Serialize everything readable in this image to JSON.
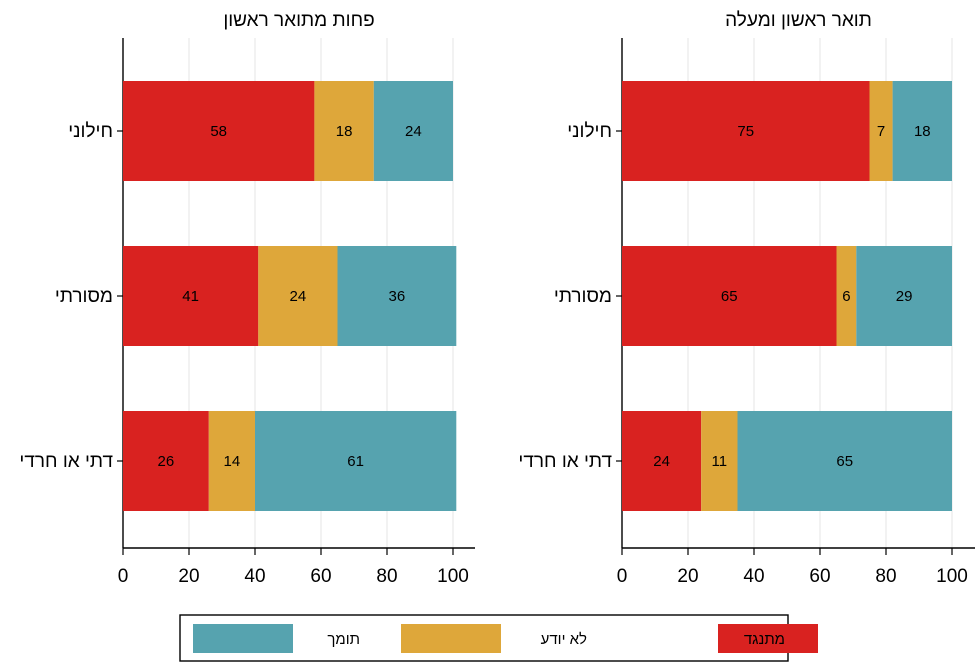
{
  "chart_data": [
    {
      "type": "bar",
      "orientation": "horizontal",
      "stacked": true,
      "title": "פחות מתואר ראשון",
      "categories": [
        "חילוני",
        "מסורתי",
        "דתי או חרדי"
      ],
      "series": [
        {
          "name": "מתנגד",
          "values": [
            58,
            41,
            26
          ]
        },
        {
          "name": "לא יודע",
          "values": [
            18,
            24,
            14
          ]
        },
        {
          "name": "תומך",
          "values": [
            24,
            36,
            61
          ]
        }
      ],
      "xlim": [
        0,
        100
      ],
      "xticks": [
        "0",
        "20",
        "40",
        "60",
        "80",
        "100"
      ],
      "grid": true
    },
    {
      "type": "bar",
      "orientation": "horizontal",
      "stacked": true,
      "title": "תואר ראשון ומעלה",
      "categories": [
        "חילוני",
        "מסורתי",
        "דתי או חרדי"
      ],
      "series": [
        {
          "name": "מתנגד",
          "values": [
            75,
            65,
            24
          ]
        },
        {
          "name": "לא יודע",
          "values": [
            7,
            6,
            11
          ]
        },
        {
          "name": "תומך",
          "values": [
            18,
            29,
            65
          ]
        }
      ],
      "xlim": [
        0,
        100
      ],
      "xticks": [
        "0",
        "20",
        "40",
        "60",
        "80",
        "100"
      ],
      "grid": true
    }
  ],
  "legend": {
    "placement": "bottom",
    "items": [
      {
        "label": "מתנגד",
        "color": "#d92220"
      },
      {
        "label": "לא יודע",
        "color": "#dea73a"
      },
      {
        "label": "תומך",
        "color": "#56a3af"
      }
    ]
  }
}
